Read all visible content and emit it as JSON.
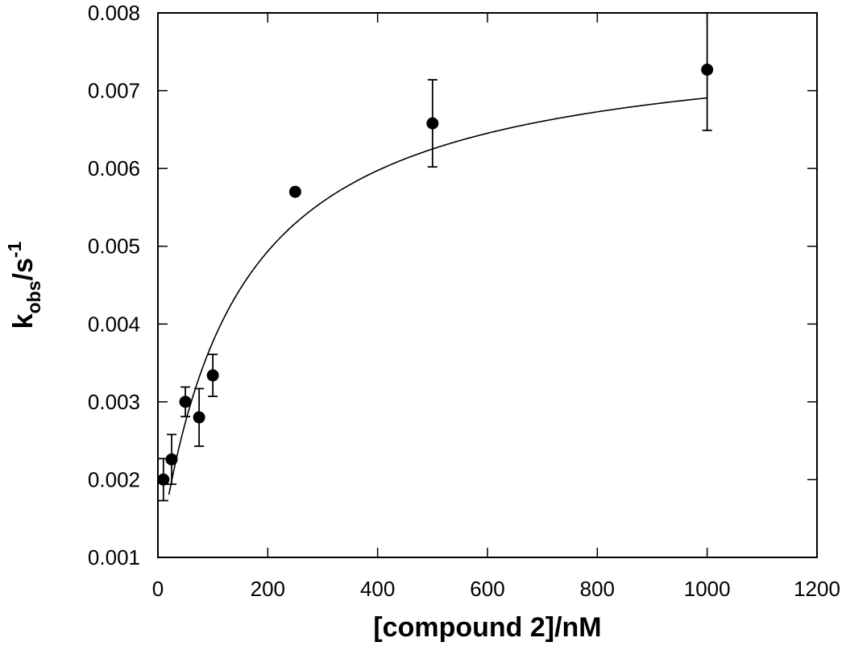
{
  "chart_data": {
    "type": "scatter",
    "title": "",
    "xlabel": "[compound 2]/nM",
    "ylabel": {
      "main": "k",
      "subscript": "obs",
      "unit": "/s",
      "superscript": "-1"
    },
    "xlim": [
      0,
      1200
    ],
    "ylim": [
      0.001,
      0.008
    ],
    "xticks": [
      0,
      200,
      400,
      600,
      800,
      1000,
      1200
    ],
    "xtick_labels": [
      "0",
      "200",
      "400",
      "600",
      "800",
      "1000",
      "1200"
    ],
    "yticks": [
      0.001,
      0.002,
      0.003,
      0.004,
      0.005,
      0.006,
      0.007,
      0.008
    ],
    "ytick_labels": [
      "0.001",
      "0.002",
      "0.003",
      "0.004",
      "0.005",
      "0.006",
      "0.007",
      "0.008"
    ],
    "grid": false,
    "series": [
      {
        "x": [
          10,
          25,
          50,
          75,
          100,
          250,
          500,
          1000
        ],
        "y": [
          0.002,
          0.00226,
          0.003,
          0.0028,
          0.00334,
          0.0057,
          0.00658,
          0.00727
        ],
        "error": [
          0.00027,
          0.00032,
          0.00019,
          0.00037,
          0.00027,
          3e-05,
          0.00056,
          0.00078
        ]
      }
    ],
    "fit_curve": {
      "model": "hyperbolic",
      "x_range": [
        20,
        1000
      ],
      "y0": 0.00097,
      "amplitude": 0.00678,
      "k_half": 142
    }
  }
}
